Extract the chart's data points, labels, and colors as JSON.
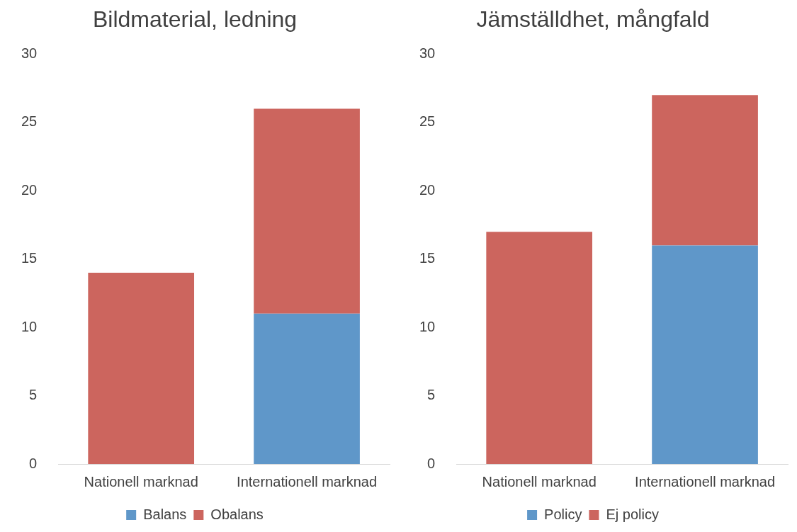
{
  "chart_data": [
    {
      "type": "bar",
      "title": "Bildmaterial, ledning",
      "categories": [
        "Nationell marknad",
        "Internationell marknad"
      ],
      "stacked": true,
      "series": [
        {
          "name": "Balans",
          "color": "#5f97c9",
          "values": [
            0,
            11
          ]
        },
        {
          "name": "Obalans",
          "color": "#cc655e",
          "values": [
            14,
            15
          ]
        }
      ],
      "ylim": [
        0,
        30
      ],
      "yticks": [
        0,
        5,
        10,
        15,
        20,
        25,
        30
      ],
      "grid": false,
      "legend": "bottom"
    },
    {
      "type": "bar",
      "title": "Jämställdhet, mångfald",
      "categories": [
        "Nationell marknad",
        "Internationell marknad"
      ],
      "stacked": true,
      "series": [
        {
          "name": "Policy",
          "color": "#5f97c9",
          "values": [
            0,
            16
          ]
        },
        {
          "name": "Ej policy",
          "color": "#cc655e",
          "values": [
            17,
            11
          ]
        }
      ],
      "ylim": [
        0,
        30
      ],
      "yticks": [
        0,
        5,
        10,
        15,
        20,
        25,
        30
      ],
      "grid": false,
      "legend": "bottom"
    }
  ]
}
